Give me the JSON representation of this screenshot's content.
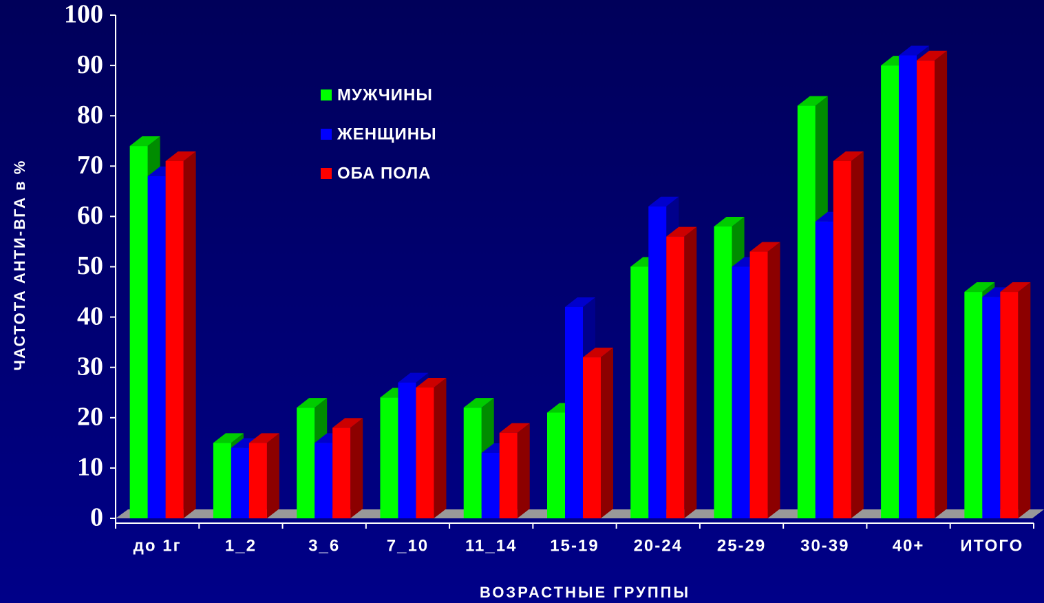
{
  "chart_data": {
    "type": "bar3d",
    "y_label": "ЧАСТОТА АНТИ-ВГА в %",
    "x_label": "ВОЗРАСТНЫЕ ГРУППЫ",
    "categories": [
      "до 1г",
      "1_2",
      "3_6",
      "7_10",
      "11_14",
      "15-19",
      "20-24",
      "25-29",
      "30-39",
      "40+",
      "ИТОГО"
    ],
    "series": [
      {
        "name": "МУЖЧИНЫ",
        "color": "#00ff00",
        "values": [
          74,
          15,
          22,
          24,
          22,
          21,
          50,
          58,
          82,
          90,
          45
        ]
      },
      {
        "name": "ЖЕНЩИНЫ",
        "color": "#0000ff",
        "values": [
          68,
          14,
          15,
          27,
          13,
          42,
          62,
          50,
          59,
          92,
          44
        ]
      },
      {
        "name": "ОБА ПОЛА",
        "color": "#ff0000",
        "values": [
          71,
          15,
          18,
          26,
          17,
          32,
          56,
          53,
          71,
          91,
          45
        ]
      }
    ],
    "ylim": [
      0,
      100
    ],
    "yticks": [
      0,
      10,
      20,
      30,
      40,
      50,
      60,
      70,
      80,
      90,
      100
    ]
  }
}
